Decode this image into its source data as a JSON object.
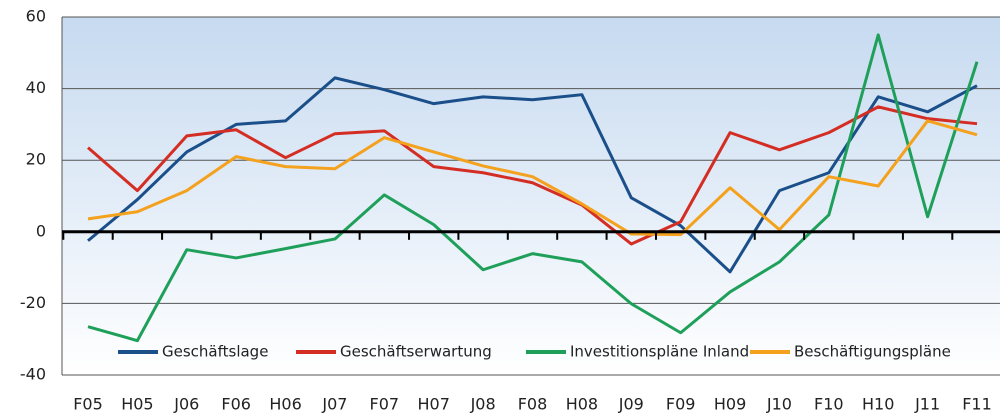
{
  "chart_data": {
    "type": "line",
    "categories": [
      "F05",
      "H05",
      "J06",
      "F06",
      "H06",
      "J07",
      "F07",
      "H07",
      "J08",
      "F08",
      "H08",
      "J09",
      "F09",
      "H09",
      "J10",
      "F10",
      "H10",
      "J11",
      "F11"
    ],
    "series": [
      {
        "name": "Geschäftslage",
        "color": "#1a4f8a",
        "values": [
          -2.5,
          9,
          22.3,
          30,
          31,
          43,
          39.7,
          35.8,
          37.7,
          36.9,
          38.3,
          9.5,
          1.7,
          -11.2,
          11.5,
          16.5,
          37.7,
          33.5,
          40.8
        ]
      },
      {
        "name": "Geschäftserwartung",
        "color": "#d42e24",
        "values": [
          23.5,
          11.5,
          26.8,
          28.5,
          20.7,
          27.4,
          28.2,
          18.2,
          16.5,
          13.7,
          7.5,
          -3.4,
          2.8,
          27.7,
          22.9,
          27.7,
          34.9,
          31.6,
          30.2
        ]
      },
      {
        "name": "Investitionspläne Inland",
        "color": "#1fa05a",
        "values": [
          -26.5,
          -30.4,
          -5,
          -7.3,
          -4.7,
          -2,
          10.3,
          2,
          -10.6,
          -6.1,
          -8.4,
          -20.1,
          -28.2,
          -16.8,
          -8.4,
          4.7,
          55,
          4.2,
          47.5
        ]
      },
      {
        "name": "Beschäftigungspläne",
        "color": "#f4a11d",
        "values": [
          3.6,
          5.6,
          11.5,
          21,
          18.2,
          17.6,
          26.3,
          22.3,
          18.4,
          15.4,
          7.8,
          -0.6,
          -0.8,
          12.3,
          0.6,
          15.4,
          12.8,
          31,
          27.1
        ]
      }
    ],
    "ylim": [
      -40,
      60
    ],
    "yticks": [
      -40,
      -20,
      0,
      20,
      40,
      60
    ],
    "grid": true,
    "legend": "bottom"
  }
}
